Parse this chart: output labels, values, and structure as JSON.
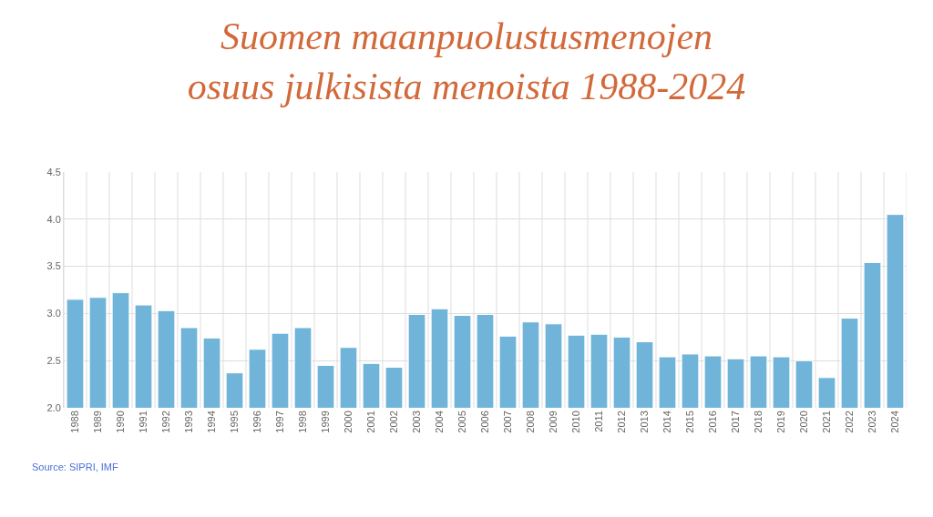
{
  "chart_data": {
    "type": "bar",
    "title": "Suomen maanpuolustusmenojen\nosuus julkisista menoista 1988-2024",
    "categories": [
      "1988",
      "1989",
      "1990",
      "1991",
      "1992",
      "1993",
      "1994",
      "1995",
      "1996",
      "1997",
      "1998",
      "1999",
      "2000",
      "2001",
      "2002",
      "2003",
      "2004",
      "2005",
      "2006",
      "2007",
      "2008",
      "2009",
      "2010",
      "2011",
      "2012",
      "2013",
      "2014",
      "2015",
      "2016",
      "2017",
      "2018",
      "2019",
      "2020",
      "2021",
      "2022",
      "2023",
      "2024"
    ],
    "values": [
      3.15,
      3.17,
      3.22,
      3.09,
      3.03,
      2.85,
      2.74,
      2.37,
      2.62,
      2.79,
      2.85,
      2.45,
      2.64,
      2.47,
      2.43,
      2.99,
      3.05,
      2.98,
      2.99,
      2.76,
      2.91,
      2.89,
      2.77,
      2.78,
      2.75,
      2.7,
      2.54,
      2.57,
      2.55,
      2.52,
      2.55,
      2.54,
      2.5,
      2.32,
      2.95,
      3.54,
      4.05
    ],
    "color": "#70b4d9",
    "ylim": [
      2.0,
      4.5
    ],
    "yticks": [
      {
        "value": 2.0,
        "label": "2.0"
      },
      {
        "value": 2.5,
        "label": "2.5"
      },
      {
        "value": 3.0,
        "label": "3.0"
      },
      {
        "value": 3.5,
        "label": "3.5"
      },
      {
        "value": 4.0,
        "label": "4.0"
      },
      {
        "value": 4.5,
        "label": "4.5"
      }
    ],
    "grid": true,
    "legend": false,
    "annotations": [
      "Source: SIPRI, IMF"
    ]
  }
}
